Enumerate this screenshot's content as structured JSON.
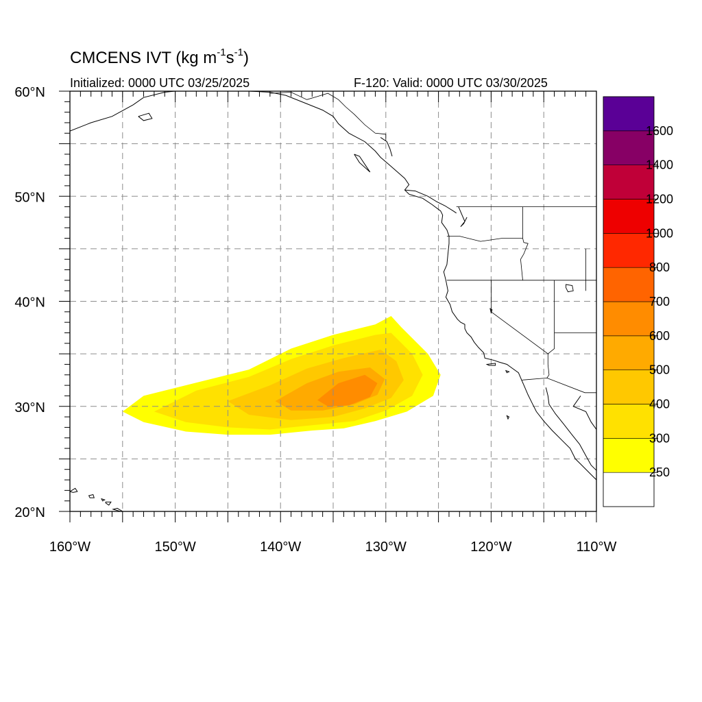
{
  "title": {
    "main": "CMCENS IVT (kg m",
    "exp1": "-1",
    "mid": "s",
    "exp2": "-1",
    "close": ")"
  },
  "subtitle_left": "Initialized: 0000 UTC 03/25/2025",
  "subtitle_right": "F-120: Valid: 0000 UTC 03/30/2025",
  "map": {
    "lon_range": [
      -160,
      -110
    ],
    "lat_range": [
      20,
      60
    ],
    "grid": "dashed",
    "lat_ticks": [
      {
        "lat": 60,
        "label": "60°N"
      },
      {
        "lat": 50,
        "label": "50°N"
      },
      {
        "lat": 40,
        "label": "40°N"
      },
      {
        "lat": 30,
        "label": "30°N"
      },
      {
        "lat": 20,
        "label": "20°N"
      }
    ],
    "lon_ticks": [
      {
        "lon": -160,
        "label": "160°W"
      },
      {
        "lon": -150,
        "label": "150°W"
      },
      {
        "lon": -140,
        "label": "140°W"
      },
      {
        "lon": -130,
        "label": "130°W"
      },
      {
        "lon": -120,
        "label": "120°W"
      },
      {
        "lon": -110,
        "label": "110°W"
      }
    ],
    "ivt_field": [
      {
        "level": 250,
        "ring": [
          [
            -155,
            29.5
          ],
          [
            -153,
            31
          ],
          [
            -147,
            32.5
          ],
          [
            -143,
            33.5
          ],
          [
            -139,
            35.5
          ],
          [
            -135,
            36.8
          ],
          [
            -131,
            37.8
          ],
          [
            -129.5,
            38.6
          ],
          [
            -128.5,
            37.5
          ],
          [
            -126,
            35
          ],
          [
            -124.8,
            33
          ],
          [
            -125.5,
            31
          ],
          [
            -128,
            29.5
          ],
          [
            -131,
            28.6
          ],
          [
            -134,
            27.9
          ],
          [
            -137,
            27.7
          ],
          [
            -141,
            27.3
          ],
          [
            -145,
            27.3
          ],
          [
            -149,
            27.6
          ],
          [
            -153,
            28.5
          ]
        ]
      },
      {
        "level": 300,
        "ring": [
          [
            -152,
            29.5
          ],
          [
            -148,
            31.5
          ],
          [
            -143,
            32.8
          ],
          [
            -139,
            34.5
          ],
          [
            -135,
            35.8
          ],
          [
            -131,
            36.8
          ],
          [
            -129.5,
            37
          ],
          [
            -127.5,
            35
          ],
          [
            -126.5,
            33
          ],
          [
            -127.5,
            31
          ],
          [
            -130,
            29.6
          ],
          [
            -133,
            28.6
          ],
          [
            -137,
            28.2
          ],
          [
            -141,
            27.8
          ],
          [
            -145,
            28
          ],
          [
            -149,
            28.5
          ]
        ]
      },
      {
        "level": 400,
        "ring": [
          [
            -145,
            30.5
          ],
          [
            -141,
            32
          ],
          [
            -137.5,
            33.6
          ],
          [
            -134,
            34.6
          ],
          [
            -130.5,
            35.4
          ],
          [
            -129,
            34.3
          ],
          [
            -128.3,
            32.5
          ],
          [
            -129.5,
            30.8
          ],
          [
            -132,
            29.8
          ],
          [
            -135,
            29
          ],
          [
            -139,
            28.7
          ],
          [
            -143,
            29.2
          ]
        ]
      },
      {
        "level": 500,
        "ring": [
          [
            -140.5,
            30.5
          ],
          [
            -137.5,
            32.2
          ],
          [
            -134.5,
            33.3
          ],
          [
            -131.5,
            33.7
          ],
          [
            -130.1,
            32.6
          ],
          [
            -130.8,
            31.1
          ],
          [
            -133,
            30.2
          ],
          [
            -136,
            29.6
          ],
          [
            -139,
            29.6
          ]
        ]
      },
      {
        "level": 600,
        "ring": [
          [
            -136.5,
            30.6
          ],
          [
            -134.5,
            32.2
          ],
          [
            -132,
            33
          ],
          [
            -130.8,
            32.2
          ],
          [
            -131.5,
            30.9
          ],
          [
            -133.5,
            30.1
          ],
          [
            -135.5,
            30
          ]
        ]
      }
    ],
    "colorbar": {
      "levels": [
        "250",
        "300",
        "400",
        "500",
        "600",
        "700",
        "800",
        "1000",
        "1200",
        "1400",
        "1600"
      ],
      "colors": [
        "#ffffff",
        "#ffff00",
        "#ffe100",
        "#ffc800",
        "#ffaa00",
        "#ff8c00",
        "#ff6400",
        "#ff2800",
        "#ee0000",
        "#c00038",
        "#870065",
        "#5a0096"
      ]
    },
    "coastlines": [
      [
        [
          -160,
          56.2
        ],
        [
          -158,
          57.0
        ],
        [
          -156,
          57.6
        ],
        [
          -154,
          58.7
        ],
        [
          -153,
          59.4
        ],
        [
          -151,
          59.9
        ],
        [
          -150,
          60
        ]
      ],
      [
        [
          -153.5,
          57.6
        ],
        [
          -152.5,
          57.9
        ],
        [
          -152.2,
          57.4
        ],
        [
          -153,
          57.2
        ],
        [
          -153.5,
          57.6
        ]
      ],
      [
        [
          -143,
          60
        ],
        [
          -141,
          59.9
        ],
        [
          -139.5,
          59.6
        ],
        [
          -137.5,
          58.8
        ],
        [
          -136,
          58.2
        ],
        [
          -135,
          57.6
        ],
        [
          -134.5,
          56.9
        ],
        [
          -133.5,
          56.0
        ],
        [
          -132,
          55.2
        ],
        [
          -131,
          54.3
        ],
        [
          -130.5,
          53.7
        ],
        [
          -129.8,
          53.1
        ],
        [
          -129,
          52.4
        ],
        [
          -128.2,
          51.7
        ],
        [
          -127.8,
          51.1
        ],
        [
          -128.2,
          50.6
        ],
        [
          -127.8,
          50.2
        ],
        [
          -126.5,
          49.8
        ],
        [
          -125.6,
          49.2
        ],
        [
          -124.8,
          48.6
        ],
        [
          -124.6,
          48.2
        ],
        [
          -124.7,
          47.5
        ],
        [
          -124.2,
          46.8
        ],
        [
          -124,
          46.2
        ],
        [
          -124,
          45.5
        ],
        [
          -124.1,
          44.5
        ],
        [
          -124.2,
          43.5
        ],
        [
          -124.5,
          42.8
        ],
        [
          -124.3,
          42
        ],
        [
          -124.1,
          41
        ],
        [
          -124.3,
          40.4
        ],
        [
          -123.9,
          39.7
        ],
        [
          -123.7,
          39
        ],
        [
          -123.2,
          38.3
        ],
        [
          -122.9,
          38
        ],
        [
          -122.5,
          37.8
        ],
        [
          -122.5,
          37.4
        ],
        [
          -122.3,
          37
        ],
        [
          -121.9,
          36.6
        ],
        [
          -121.6,
          36.1
        ],
        [
          -121.2,
          35.6
        ],
        [
          -120.7,
          35.1
        ],
        [
          -120.6,
          34.6
        ],
        [
          -119.8,
          34.4
        ],
        [
          -119.2,
          34.2
        ],
        [
          -118.5,
          34
        ],
        [
          -118.1,
          33.7
        ],
        [
          -117.4,
          33.2
        ],
        [
          -117.1,
          32.5
        ],
        [
          -116.8,
          31.8
        ],
        [
          -116.5,
          31.1
        ],
        [
          -116.1,
          30.3
        ],
        [
          -115.7,
          29.5
        ],
        [
          -115,
          28.6
        ],
        [
          -114.2,
          27.7
        ],
        [
          -113.3,
          26.8
        ],
        [
          -112.5,
          26
        ],
        [
          -112,
          25
        ],
        [
          -111.5,
          24.5
        ],
        [
          -110.5,
          23.5
        ],
        [
          -110,
          23
        ]
      ],
      [
        [
          -114.8,
          31.8
        ],
        [
          -114.6,
          31
        ],
        [
          -114.5,
          30.2
        ],
        [
          -113.9,
          29.3
        ],
        [
          -113.1,
          28.3
        ],
        [
          -112.4,
          27.4
        ],
        [
          -111.6,
          26.4
        ],
        [
          -111,
          25.3
        ],
        [
          -110.5,
          24.4
        ],
        [
          -110,
          23.9
        ]
      ],
      [
        [
          -111.5,
          31
        ],
        [
          -112.2,
          30
        ],
        [
          -111,
          29.5
        ],
        [
          -110.5,
          28.5
        ],
        [
          -110,
          27.8
        ]
      ],
      [
        [
          -128.2,
          50.6
        ],
        [
          -127.2,
          50.5
        ],
        [
          -126,
          50
        ],
        [
          -125.2,
          49.5
        ],
        [
          -124.4,
          49.1
        ],
        [
          -123.6,
          48.6
        ],
        [
          -123.3,
          48.4
        ]
      ],
      [
        [
          -123.1,
          49.0
        ],
        [
          -122.8,
          48.3
        ],
        [
          -122.5,
          47.6
        ],
        [
          -122.9,
          47.1
        ],
        [
          -122.6,
          47.4
        ],
        [
          -122.3,
          48
        ]
      ],
      [
        [
          -133,
          54
        ],
        [
          -132.5,
          53.2
        ],
        [
          -131.5,
          52.3
        ],
        [
          -131.9,
          52.9
        ],
        [
          -132.5,
          53.8
        ],
        [
          -133,
          54
        ]
      ],
      [
        [
          -130.5,
          55.6
        ],
        [
          -129.9,
          55.2
        ],
        [
          -129.6,
          54.5
        ],
        [
          -129.4,
          53.8
        ]
      ]
    ],
    "islands": [
      [
        [
          -160,
          21.9
        ],
        [
          -159.5,
          22.2
        ],
        [
          -159.3,
          21.9
        ],
        [
          -159.7,
          21.8
        ],
        [
          -160,
          21.9
        ]
      ],
      [
        [
          -158.2,
          21.5
        ],
        [
          -157.8,
          21.6
        ],
        [
          -157.7,
          21.3
        ],
        [
          -158.1,
          21.3
        ],
        [
          -158.2,
          21.5
        ]
      ],
      [
        [
          -157,
          21.2
        ],
        [
          -156.7,
          21.1
        ],
        [
          -156.9,
          21.0
        ],
        [
          -157,
          21.2
        ]
      ],
      [
        [
          -156.6,
          20.9
        ],
        [
          -156.1,
          20.9
        ],
        [
          -156.3,
          20.6
        ],
        [
          -156.6,
          20.8
        ]
      ],
      [
        [
          -155.9,
          20.2
        ],
        [
          -155.5,
          20.3
        ],
        [
          -155,
          20
        ],
        [
          -155.2,
          20
        ]
      ],
      [
        [
          -120.4,
          34
        ],
        [
          -119.6,
          34.1
        ],
        [
          -119.6,
          33.9
        ],
        [
          -120.2,
          33.9
        ],
        [
          -120.4,
          34
        ]
      ],
      [
        [
          -118.6,
          33.4
        ],
        [
          -118.3,
          33.3
        ],
        [
          -118.5,
          33.2
        ],
        [
          -118.6,
          33.4
        ]
      ],
      [
        [
          -118.5,
          29.1
        ],
        [
          -118.3,
          29.0
        ],
        [
          -118.4,
          28.8
        ],
        [
          -118.5,
          29.1
        ]
      ]
    ],
    "borders": [
      [
        [
          -141,
          60
        ],
        [
          -141,
          59.8
        ],
        [
          -139,
          59.9
        ],
        [
          -137.5,
          59.2
        ],
        [
          -136.5,
          59.5
        ],
        [
          -135.5,
          59.8
        ],
        [
          -134.5,
          59.2
        ],
        [
          -133.8,
          58.5
        ],
        [
          -133,
          57.8
        ],
        [
          -132,
          56.8
        ],
        [
          -131,
          56
        ],
        [
          -130,
          55.9
        ],
        [
          -130,
          55.3
        ]
      ],
      [
        [
          -123.3,
          49
        ],
        [
          -117,
          49
        ],
        [
          -110,
          49
        ]
      ],
      [
        [
          -117,
          49
        ],
        [
          -117,
          46
        ],
        [
          -116.9,
          45.6
        ],
        [
          -116.5,
          45.5
        ],
        [
          -116.9,
          44.5
        ],
        [
          -117.2,
          44
        ],
        [
          -117,
          42
        ]
      ],
      [
        [
          -124.2,
          46.2
        ],
        [
          -123,
          46.2
        ],
        [
          -121,
          45.7
        ],
        [
          -119,
          46
        ],
        [
          -117,
          46
        ]
      ],
      [
        [
          -124.2,
          42
        ],
        [
          -120,
          42
        ],
        [
          -117,
          42
        ],
        [
          -114,
          42
        ],
        [
          -111,
          42
        ]
      ],
      [
        [
          -120,
          42
        ],
        [
          -120,
          39
        ],
        [
          -114.6,
          35
        ]
      ],
      [
        [
          -114,
          42
        ],
        [
          -114,
          37
        ],
        [
          -114,
          35.5
        ],
        [
          -114.6,
          35
        ],
        [
          -114.6,
          34
        ],
        [
          -114.5,
          33
        ],
        [
          -114.7,
          32.7
        ]
      ],
      [
        [
          -111,
          45
        ],
        [
          -111,
          41
        ],
        [
          -111,
          42
        ],
        [
          -110,
          42
        ]
      ],
      [
        [
          -114,
          37
        ],
        [
          -110,
          37
        ]
      ],
      [
        [
          -117.1,
          32.5
        ],
        [
          -114.7,
          32.7
        ],
        [
          -111.1,
          31.3
        ],
        [
          -110,
          31.3
        ]
      ]
    ],
    "lakes": [
      [
        [
          -112.9,
          41.6
        ],
        [
          -112.3,
          41.5
        ],
        [
          -112.2,
          41.0
        ],
        [
          -112.7,
          40.9
        ],
        [
          -112.9,
          41.3
        ],
        [
          -112.9,
          41.6
        ]
      ],
      [
        [
          -120.1,
          39.3
        ],
        [
          -119.9,
          39.2
        ],
        [
          -120.0,
          38.9
        ],
        [
          -120.1,
          39.3
        ]
      ]
    ]
  }
}
